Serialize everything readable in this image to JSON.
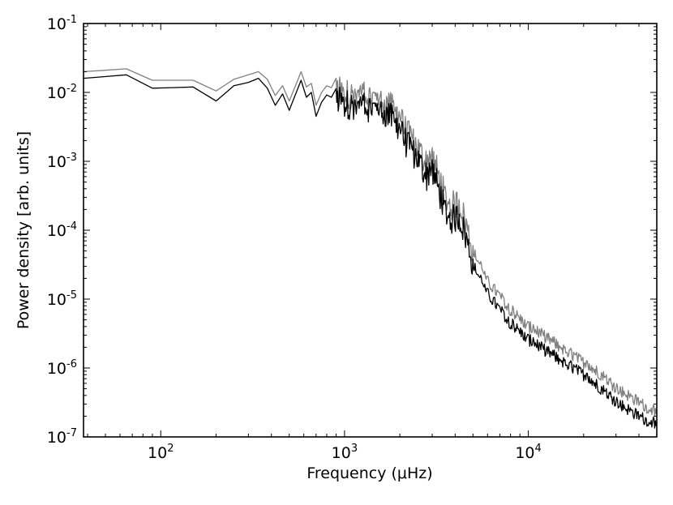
{
  "chart_data": {
    "type": "line",
    "xlabel": "Frequency (μHz)",
    "ylabel": "Power density [arb. units]",
    "x_scale": "log",
    "y_scale": "log",
    "xlim": [
      38,
      50000
    ],
    "ylim": [
      1e-07,
      0.1
    ],
    "x_ticks": [
      {
        "value": 100,
        "base": "10",
        "exp": "2"
      },
      {
        "value": 1000,
        "base": "10",
        "exp": "3"
      },
      {
        "value": 10000,
        "base": "10",
        "exp": "4"
      }
    ],
    "y_ticks": [
      {
        "value": 1e-07,
        "base": "10",
        "exp": "-7"
      },
      {
        "value": 1e-06,
        "base": "10",
        "exp": "-6"
      },
      {
        "value": 1e-05,
        "base": "10",
        "exp": "-5"
      },
      {
        "value": 0.0001,
        "base": "10",
        "exp": "-4"
      },
      {
        "value": 0.001,
        "base": "10",
        "exp": "-3"
      },
      {
        "value": 0.01,
        "base": "10",
        "exp": "-2"
      },
      {
        "value": 0.1,
        "base": "10",
        "exp": "-1"
      }
    ],
    "grid": false,
    "legend": "none",
    "series": [
      {
        "color": "#808080",
        "x": [
          38,
          65,
          90,
          150,
          200,
          250,
          300,
          340,
          380,
          420,
          460,
          500,
          550,
          580,
          620,
          660,
          700,
          750,
          800,
          900,
          1000,
          1200,
          1500,
          1800,
          2000,
          2200,
          2500,
          2800,
          3000,
          3200,
          3500,
          3800,
          4200,
          4600,
          5000,
          5500,
          6000,
          7000,
          8000,
          10000,
          12000,
          15000,
          20000,
          25000,
          30000,
          35000,
          40000,
          45000,
          50000
        ],
        "y": [
          0.02,
          0.022,
          0.015,
          0.015,
          0.0105,
          0.0155,
          0.018,
          0.02,
          0.0155,
          0.009,
          0.0125,
          0.0075,
          0.014,
          0.02,
          0.012,
          0.0135,
          0.0065,
          0.01,
          0.0125,
          0.011,
          0.0095,
          0.0095,
          0.0082,
          0.006,
          0.0042,
          0.0025,
          0.0016,
          0.0009,
          0.0012,
          0.0007,
          0.00032,
          0.00022,
          0.00026,
          0.00012,
          5e-05,
          3e-05,
          1.8e-05,
          1.1e-05,
          7e-06,
          4e-06,
          3e-06,
          2e-06,
          1.2e-06,
          8e-07,
          5.2e-07,
          4e-07,
          3.2e-07,
          2.6e-07,
          2.4e-07
        ]
      },
      {
        "color": "#000000",
        "x": [
          38,
          65,
          90,
          150,
          200,
          250,
          300,
          340,
          380,
          420,
          460,
          500,
          550,
          580,
          620,
          660,
          700,
          750,
          800,
          900,
          1000,
          1200,
          1500,
          1800,
          2000,
          2200,
          2500,
          2800,
          3000,
          3200,
          3500,
          3800,
          4200,
          4600,
          5000,
          5500,
          6000,
          7000,
          8000,
          10000,
          12000,
          15000,
          20000,
          25000,
          30000,
          35000,
          40000,
          45000,
          50000
        ],
        "y": [
          0.016,
          0.018,
          0.0115,
          0.012,
          0.0075,
          0.0125,
          0.014,
          0.016,
          0.0115,
          0.0065,
          0.0095,
          0.0055,
          0.0105,
          0.015,
          0.0085,
          0.01,
          0.0045,
          0.0072,
          0.0092,
          0.0078,
          0.0068,
          0.0065,
          0.0058,
          0.0042,
          0.0028,
          0.0017,
          0.0011,
          0.0006,
          0.0008,
          0.00045,
          0.0002,
          0.00014,
          0.00016,
          7.5e-05,
          3.2e-05,
          1.9e-05,
          1.2e-05,
          7e-06,
          4.5e-06,
          2.6e-06,
          1.9e-06,
          1.3e-06,
          8e-07,
          5e-07,
          3.3e-07,
          2.5e-07,
          2e-07,
          1.7e-07,
          1.6e-07
        ]
      }
    ]
  }
}
